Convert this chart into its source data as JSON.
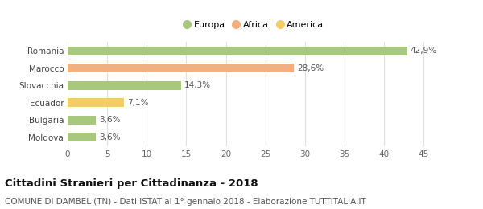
{
  "categories": [
    "Romania",
    "Marocco",
    "Slovacchia",
    "Ecuador",
    "Bulgaria",
    "Moldova"
  ],
  "values": [
    42.9,
    28.6,
    14.3,
    7.1,
    3.6,
    3.6
  ],
  "labels": [
    "42,9%",
    "28,6%",
    "14,3%",
    "7,1%",
    "3,6%",
    "3,6%"
  ],
  "bar_colors": [
    "#a8c87e",
    "#f0b080",
    "#a8c87e",
    "#f5cc6a",
    "#a8c87e",
    "#a8c87e"
  ],
  "legend_items": [
    {
      "label": "Europa",
      "color": "#a8c87e"
    },
    {
      "label": "Africa",
      "color": "#f0b080"
    },
    {
      "label": "America",
      "color": "#f5cc6a"
    }
  ],
  "xlim": [
    0,
    47
  ],
  "xticks": [
    0,
    5,
    10,
    15,
    20,
    25,
    30,
    35,
    40,
    45
  ],
  "title": "Cittadini Stranieri per Cittadinanza - 2018",
  "subtitle": "COMUNE DI DAMBEL (TN) - Dati ISTAT al 1° gennaio 2018 - Elaborazione TUTTITALIA.IT",
  "title_fontsize": 9.5,
  "subtitle_fontsize": 7.5,
  "bg_color": "#ffffff",
  "grid_color": "#e0e0e0",
  "bar_height": 0.5
}
